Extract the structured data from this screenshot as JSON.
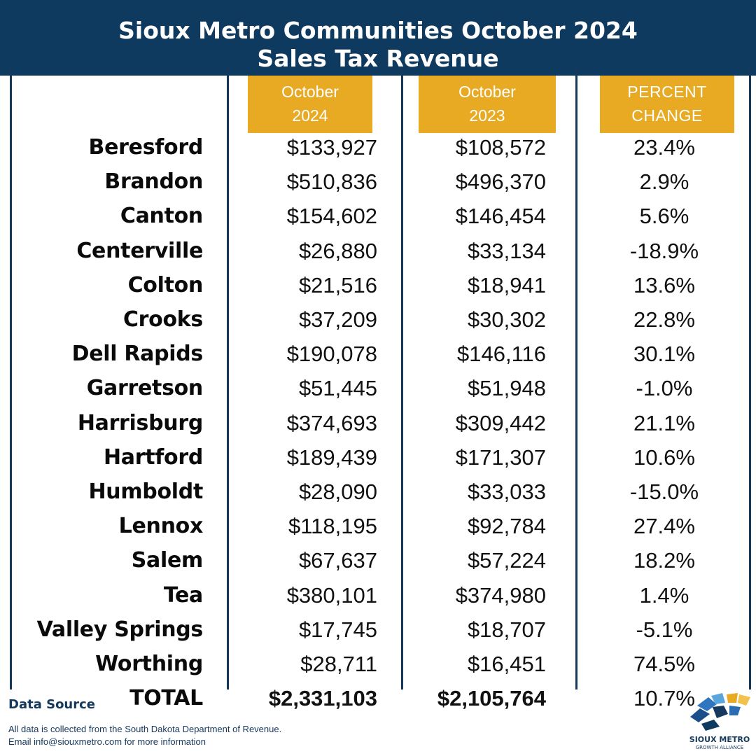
{
  "header": {
    "title_line1": "Sioux Metro Communities October 2024",
    "title_line2": "Sales Tax Revenue"
  },
  "columns": {
    "col1": [
      "October",
      "2024"
    ],
    "col2": [
      "October",
      "2023"
    ],
    "col3": [
      "PERCENT",
      "CHANGE"
    ]
  },
  "chart_data": {
    "type": "table",
    "title": "Sioux Metro Communities October 2024 Sales Tax Revenue",
    "columns": [
      "October 2024",
      "October 2023",
      "PERCENT CHANGE"
    ],
    "rows": [
      {
        "name": "Beresford",
        "oct2024": "$133,927",
        "oct2023": "$108,572",
        "change": "23.4%"
      },
      {
        "name": "Brandon",
        "oct2024": "$510,836",
        "oct2023": "$496,370",
        "change": "2.9%"
      },
      {
        "name": "Canton",
        "oct2024": "$154,602",
        "oct2023": "$146,454",
        "change": "5.6%"
      },
      {
        "name": "Centerville",
        "oct2024": "$26,880",
        "oct2023": "$33,134",
        "change": "-18.9%"
      },
      {
        "name": "Colton",
        "oct2024": "$21,516",
        "oct2023": "$18,941",
        "change": "13.6%"
      },
      {
        "name": "Crooks",
        "oct2024": "$37,209",
        "oct2023": "$30,302",
        "change": "22.8%"
      },
      {
        "name": "Dell Rapids",
        "oct2024": "$190,078",
        "oct2023": "$146,116",
        "change": "30.1%"
      },
      {
        "name": "Garretson",
        "oct2024": "$51,445",
        "oct2023": "$51,948",
        "change": "-1.0%"
      },
      {
        "name": "Harrisburg",
        "oct2024": "$374,693",
        "oct2023": "$309,442",
        "change": "21.1%"
      },
      {
        "name": "Hartford",
        "oct2024": "$189,439",
        "oct2023": "$171,307",
        "change": "10.6%"
      },
      {
        "name": "Humboldt",
        "oct2024": "$28,090",
        "oct2023": "$33,033",
        "change": "-15.0%"
      },
      {
        "name": "Lennox",
        "oct2024": "$118,195",
        "oct2023": "$92,784",
        "change": "27.4%"
      },
      {
        "name": "Salem",
        "oct2024": "$67,637",
        "oct2023": "$57,224",
        "change": "18.2%"
      },
      {
        "name": "Tea",
        "oct2024": "$380,101",
        "oct2023": "$374,980",
        "change": "1.4%"
      },
      {
        "name": "Valley Springs",
        "oct2024": "$17,745",
        "oct2023": "$18,707",
        "change": "-5.1%"
      },
      {
        "name": "Worthing",
        "oct2024": "$28,711",
        "oct2023": "$16,451",
        "change": "74.5%"
      },
      {
        "name": "TOTAL",
        "oct2024": "$2,331,103",
        "oct2023": "$2,105,764",
        "change": "10.7%"
      }
    ]
  },
  "footer": {
    "title": "Data Source",
    "line1": "All data is collected from the South Dakota Department of Revenue.",
    "line2": "Email info@siouxmetro.com for more information"
  },
  "logo": {
    "line1": "SIOUX METRO",
    "line2": "GROWTH ALLIANCE"
  },
  "colors": {
    "navy": "#0f3a60",
    "gold": "#e9aa23"
  }
}
